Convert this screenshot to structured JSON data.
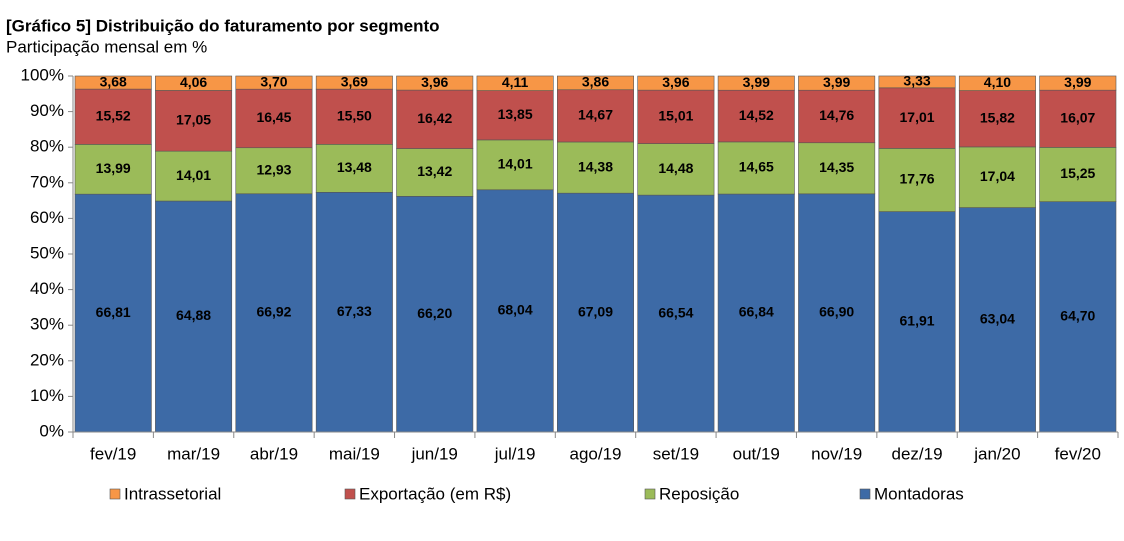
{
  "chart_data": {
    "type": "stacked-bar",
    "title": "[Gráfico 5] Distribuição do faturamento por segmento",
    "subtitle": "Participação mensal em %",
    "categories": [
      "fev/19",
      "mar/19",
      "abr/19",
      "mai/19",
      "jun/19",
      "jul/19",
      "ago/19",
      "set/19",
      "out/19",
      "nov/19",
      "dez/19",
      "jan/20",
      "fev/20"
    ],
    "series": [
      {
        "name": "Montadoras",
        "color": "#3d6aa6",
        "values": [
          66.81,
          64.88,
          66.92,
          67.33,
          66.2,
          68.04,
          67.09,
          66.54,
          66.84,
          66.9,
          61.91,
          63.04,
          64.7
        ],
        "value_labels": [
          "66,81",
          "64,88",
          "66,92",
          "67,33",
          "66,20",
          "68,04",
          "67,09",
          "66,54",
          "66,84",
          "66,90",
          "61,91",
          "63,04",
          "64,70"
        ]
      },
      {
        "name": "Reposição",
        "color": "#9bbb59",
        "values": [
          13.99,
          14.01,
          12.93,
          13.48,
          13.42,
          14.01,
          14.38,
          14.48,
          14.65,
          14.35,
          17.76,
          17.04,
          15.25
        ],
        "value_labels": [
          "13,99",
          "14,01",
          "12,93",
          "13,48",
          "13,42",
          "14,01",
          "14,38",
          "14,48",
          "14,65",
          "14,35",
          "17,76",
          "17,04",
          "15,25"
        ]
      },
      {
        "name": "Exportação (em R$)",
        "color": "#c0504d",
        "values": [
          15.52,
          17.05,
          16.45,
          15.5,
          16.42,
          13.85,
          14.67,
          15.01,
          14.52,
          14.76,
          17.01,
          15.82,
          16.07
        ],
        "value_labels": [
          "15,52",
          "17,05",
          "16,45",
          "15,50",
          "16,42",
          "13,85",
          "14,67",
          "15,01",
          "14,52",
          "14,76",
          "17,01",
          "15,82",
          "16,07"
        ]
      },
      {
        "name": "Intrassetorial",
        "color": "#f79646",
        "values": [
          3.68,
          4.06,
          3.7,
          3.69,
          3.96,
          4.11,
          3.86,
          3.96,
          3.99,
          3.99,
          3.33,
          4.1,
          3.99
        ],
        "value_labels": [
          "3,68",
          "4,06",
          "3,70",
          "3,69",
          "3,96",
          "4,11",
          "3,86",
          "3,96",
          "3,99",
          "3,99",
          "3,33",
          "4,10",
          "3,99"
        ]
      }
    ],
    "ylim": [
      0,
      100
    ],
    "yticks": [
      {
        "value": 0,
        "label": "0%"
      },
      {
        "value": 10,
        "label": "10%"
      },
      {
        "value": 20,
        "label": "20%"
      },
      {
        "value": 30,
        "label": "30%"
      },
      {
        "value": 40,
        "label": "40%"
      },
      {
        "value": 50,
        "label": "50%"
      },
      {
        "value": 60,
        "label": "60%"
      },
      {
        "value": 70,
        "label": "70%"
      },
      {
        "value": 80,
        "label": "80%"
      },
      {
        "value": 90,
        "label": "90%"
      },
      {
        "value": 100,
        "label": "100%"
      }
    ],
    "legend": "bottom"
  }
}
